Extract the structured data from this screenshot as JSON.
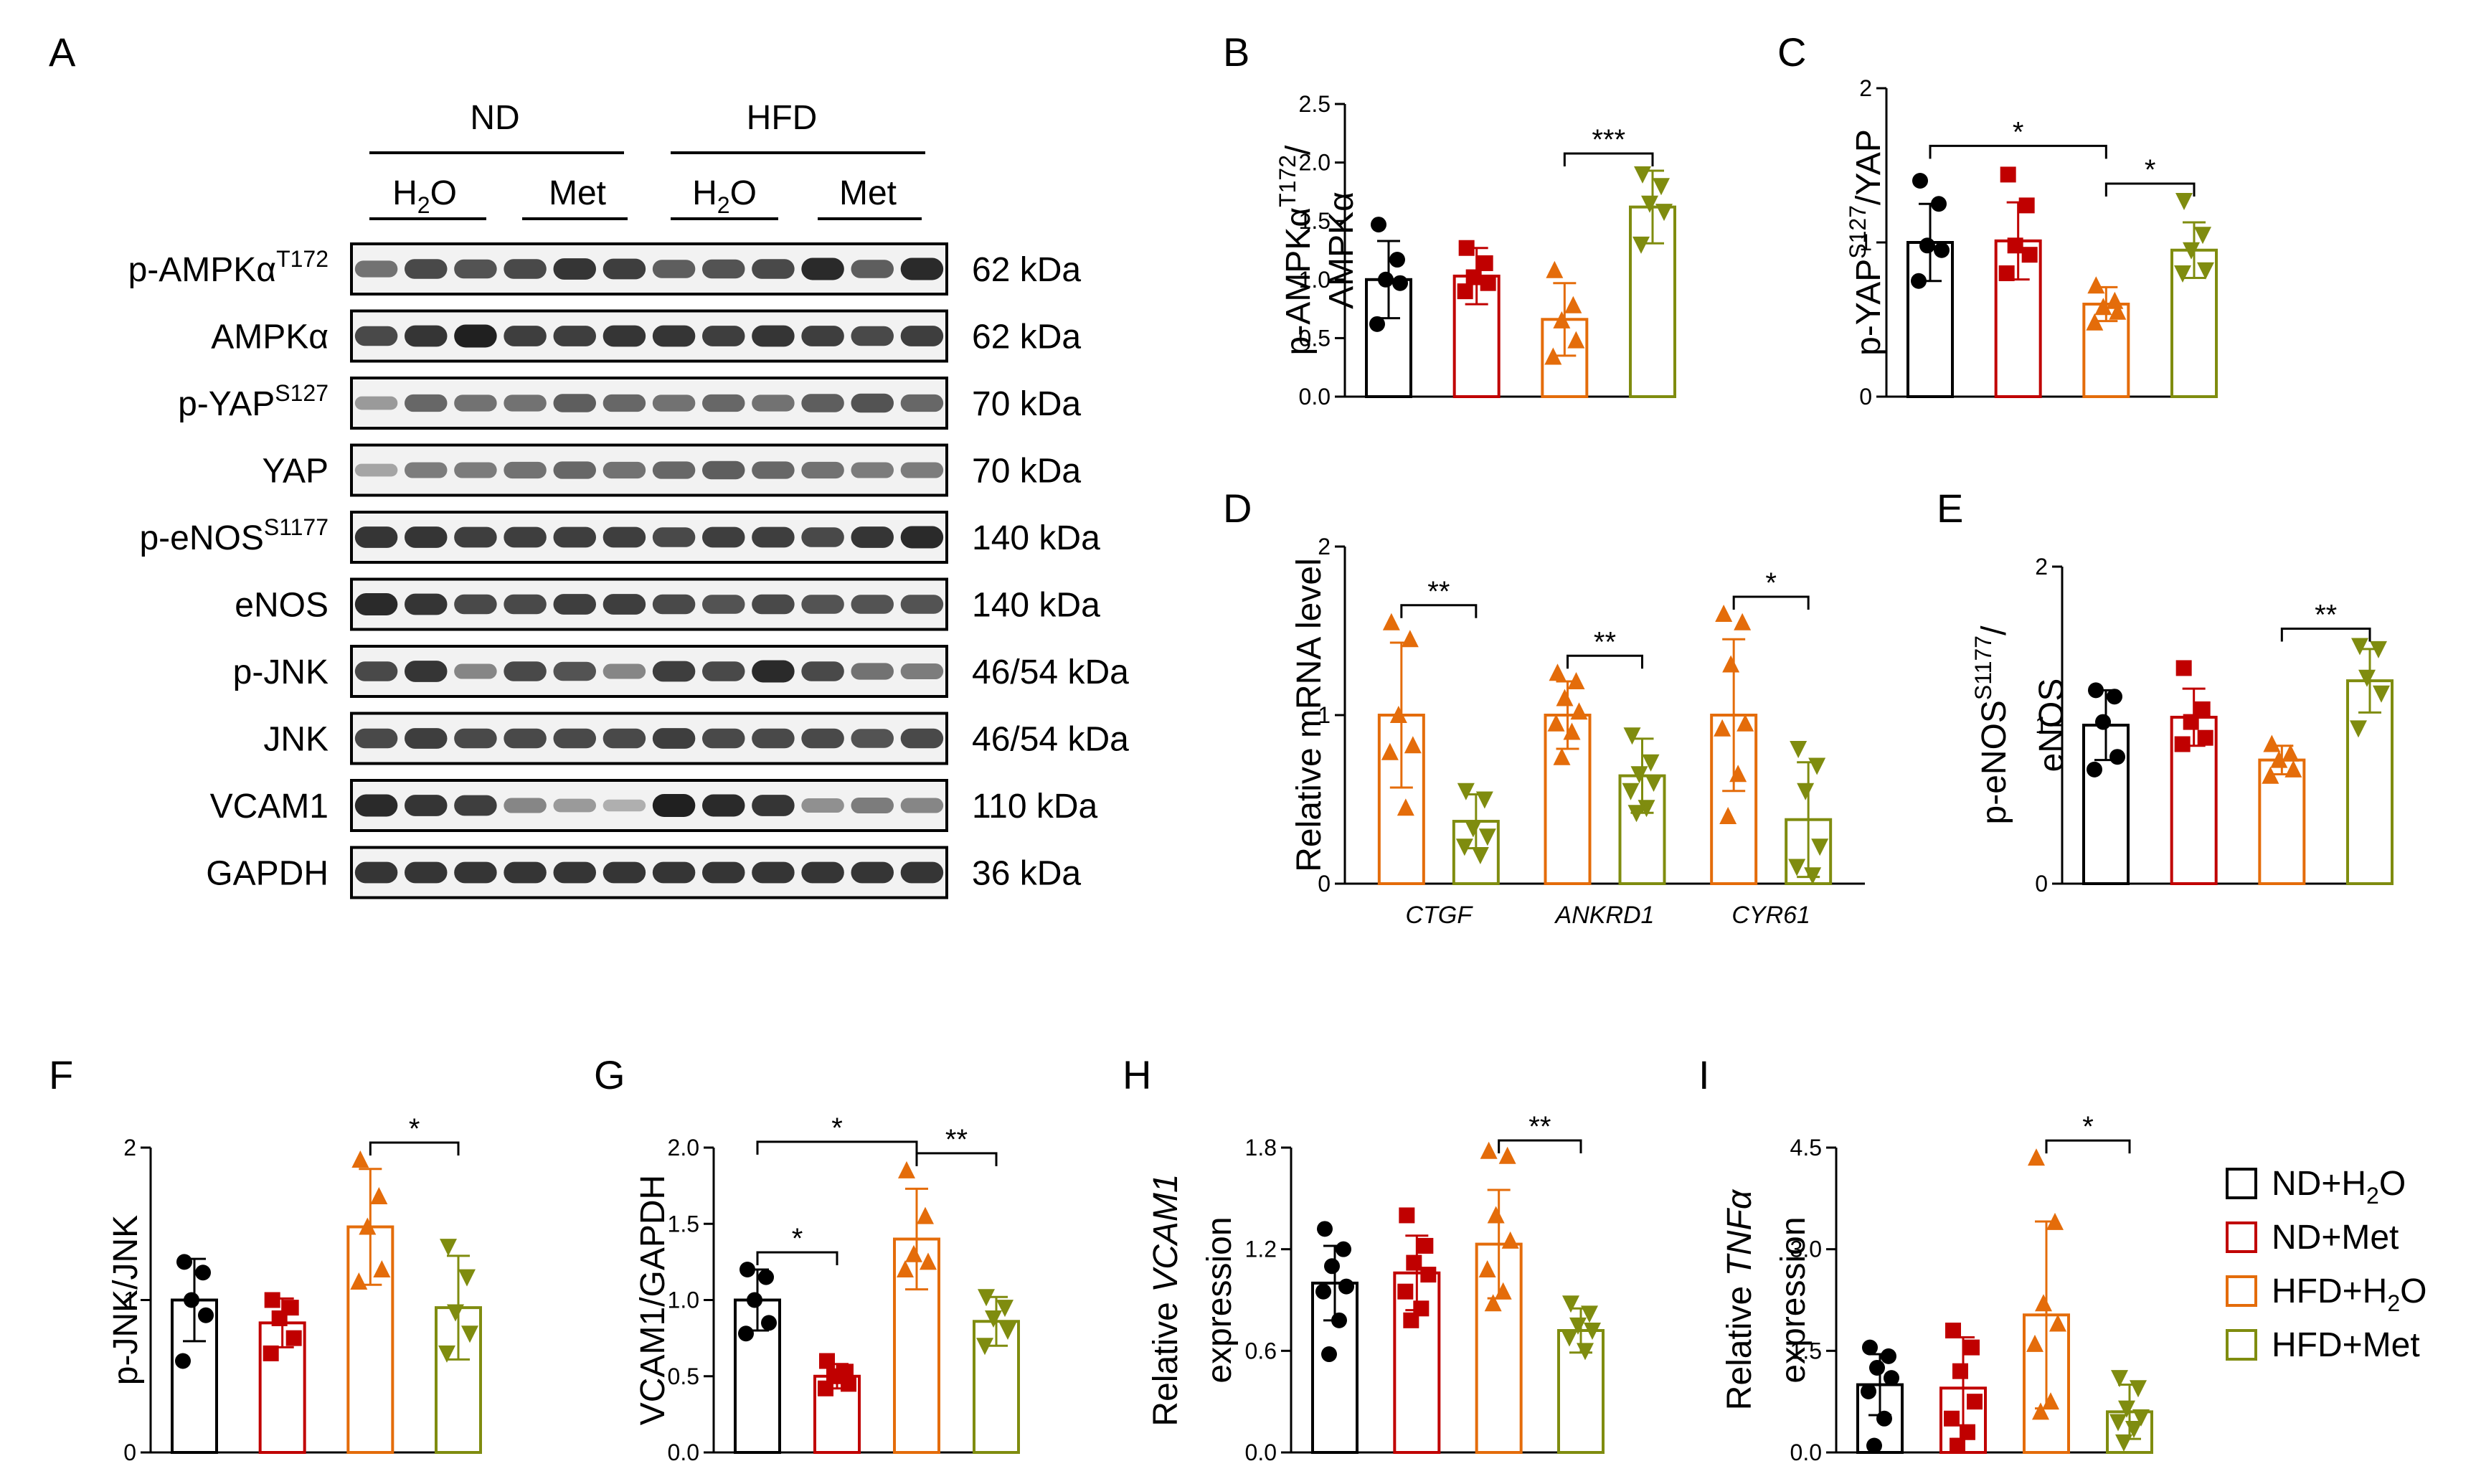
{
  "colors": {
    "ND_H2O": "#000000",
    "ND_Met": "#c00000",
    "HFD_H2O": "#e46c0a",
    "HFD_Met": "#7f8c0f"
  },
  "blot": {
    "panel_label": "A",
    "groups": [
      "ND",
      "HFD"
    ],
    "treatments": [
      {
        "main": "H",
        "sub": "2",
        "end": "O"
      },
      {
        "main": "Met",
        "sub": "",
        "end": ""
      },
      {
        "main": "H",
        "sub": "2",
        "end": "O"
      },
      {
        "main": "Met",
        "sub": "",
        "end": ""
      }
    ],
    "rows": [
      {
        "base": "p-AMPKα",
        "sup": "T172",
        "size": "62 kDa",
        "bands": [
          0.6,
          0.8,
          0.75,
          0.8,
          0.9,
          0.85,
          0.7,
          0.75,
          0.8,
          0.95,
          0.7,
          0.95
        ]
      },
      {
        "base": "AMPKα",
        "sup": "",
        "size": "62 kDa",
        "bands": [
          0.8,
          0.9,
          1.0,
          0.85,
          0.85,
          0.9,
          0.9,
          0.85,
          0.9,
          0.85,
          0.8,
          0.85
        ]
      },
      {
        "base": "p-YAP",
        "sup": "S127",
        "size": "70 kDa",
        "bands": [
          0.4,
          0.65,
          0.6,
          0.6,
          0.7,
          0.65,
          0.6,
          0.65,
          0.6,
          0.7,
          0.75,
          0.65
        ]
      },
      {
        "base": "YAP",
        "sup": "",
        "size": "70 kDa",
        "bands": [
          0.35,
          0.55,
          0.55,
          0.6,
          0.65,
          0.6,
          0.65,
          0.7,
          0.65,
          0.6,
          0.55,
          0.55
        ]
      },
      {
        "base": "p-eNOS",
        "sup": "S1177",
        "size": "140 kDa",
        "bands": [
          0.9,
          0.9,
          0.85,
          0.85,
          0.85,
          0.85,
          0.8,
          0.85,
          0.85,
          0.8,
          0.9,
          0.95
        ]
      },
      {
        "base": "eNOS",
        "sup": "",
        "size": "140 kDa",
        "bands": [
          0.95,
          0.9,
          0.8,
          0.8,
          0.85,
          0.85,
          0.8,
          0.75,
          0.8,
          0.75,
          0.75,
          0.75
        ]
      },
      {
        "base": "p-JNK",
        "sup": "",
        "size": "46/54 kDa",
        "bands": [
          0.8,
          0.9,
          0.5,
          0.8,
          0.75,
          0.5,
          0.85,
          0.8,
          0.95,
          0.8,
          0.6,
          0.55
        ]
      },
      {
        "base": "JNK",
        "sup": "",
        "size": "46/54 kDa",
        "bands": [
          0.8,
          0.85,
          0.8,
          0.8,
          0.8,
          0.8,
          0.85,
          0.8,
          0.8,
          0.8,
          0.75,
          0.8
        ]
      },
      {
        "base": "VCAM1",
        "sup": "",
        "size": "110 kDa",
        "bands": [
          0.95,
          0.9,
          0.85,
          0.5,
          0.4,
          0.3,
          1.0,
          0.95,
          0.9,
          0.45,
          0.55,
          0.5
        ]
      },
      {
        "base": "GAPDH",
        "sup": "",
        "size": "36 kDa",
        "bands": [
          0.9,
          0.9,
          0.9,
          0.9,
          0.9,
          0.9,
          0.9,
          0.9,
          0.9,
          0.9,
          0.9,
          0.9
        ]
      }
    ]
  },
  "legend": [
    {
      "main": "ND+H",
      "sub": "2",
      "end": "O",
      "color_key": "ND_H2O"
    },
    {
      "main": "ND+Met",
      "sub": "",
      "end": "",
      "color_key": "ND_Met"
    },
    {
      "main": "HFD+H",
      "sub": "2",
      "end": "O",
      "color_key": "HFD_H2O"
    },
    {
      "main": "HFD+Met",
      "sub": "",
      "end": "",
      "color_key": "HFD_Met"
    }
  ],
  "chart_data": [
    {
      "panel": "B",
      "type": "bar",
      "ylabel_lines": [
        {
          "base": "p-AMPKα",
          "sup": "T172",
          "tail": "/",
          "italic": false
        },
        {
          "base": "AMPKα",
          "sup": "",
          "tail": "",
          "italic": false
        }
      ],
      "ylim": [
        0,
        2.5
      ],
      "ticks": [
        0,
        0.5,
        1.0,
        1.5,
        2.0,
        2.5
      ],
      "tick_labels": [
        "0.0",
        "0.5",
        "1.0",
        "1.5",
        "2.0",
        "2.5"
      ],
      "bars": [
        {
          "color_key": "ND_H2O",
          "marker": "circle",
          "mean": 1.0,
          "sd": 0.33,
          "points": [
            1.47,
            1.17,
            1.0,
            0.97,
            0.62
          ]
        },
        {
          "color_key": "ND_Met",
          "marker": "square",
          "mean": 1.03,
          "sd": 0.24,
          "points": [
            1.27,
            1.14,
            1.02,
            0.97,
            0.9
          ]
        },
        {
          "color_key": "HFD_H2O",
          "marker": "triangle",
          "mean": 0.66,
          "sd": 0.31,
          "points": [
            1.08,
            0.78,
            0.65,
            0.48,
            0.34
          ]
        },
        {
          "color_key": "HFD_Met",
          "marker": "triangle-down",
          "mean": 1.62,
          "sd": 0.31,
          "points": [
            1.9,
            1.8,
            1.65,
            1.58,
            1.3
          ]
        }
      ],
      "significance": [
        {
          "from": 2,
          "to": 3,
          "label": "***"
        }
      ]
    },
    {
      "panel": "C",
      "type": "bar",
      "ylabel_lines": [
        {
          "base": "p-YAP",
          "sup": "S127",
          "tail": "/YAP",
          "italic": false
        }
      ],
      "ylim": [
        0,
        2
      ],
      "ticks": [
        0,
        1,
        2
      ],
      "tick_labels": [
        "0",
        "1",
        "2"
      ],
      "bars": [
        {
          "color_key": "ND_H2O",
          "marker": "circle",
          "mean": 1.0,
          "sd": 0.25,
          "points": [
            1.4,
            1.25,
            0.98,
            0.95,
            0.75
          ]
        },
        {
          "color_key": "ND_Met",
          "marker": "square",
          "mean": 1.01,
          "sd": 0.25,
          "points": [
            1.44,
            1.24,
            0.98,
            0.92,
            0.8
          ]
        },
        {
          "color_key": "HFD_H2O",
          "marker": "triangle",
          "mean": 0.6,
          "sd": 0.11,
          "points": [
            0.72,
            0.62,
            0.58,
            0.55,
            0.48
          ]
        },
        {
          "color_key": "HFD_Met",
          "marker": "triangle-down",
          "mean": 0.95,
          "sd": 0.18,
          "points": [
            1.27,
            1.05,
            0.95,
            0.82,
            0.8
          ]
        }
      ],
      "significance": [
        {
          "from": 0,
          "to": 2,
          "label": "*"
        },
        {
          "from": 2,
          "to": 3,
          "label": "*"
        }
      ]
    },
    {
      "panel": "D",
      "type": "bar",
      "ylabel_lines": [
        {
          "base": "Relative mRNA level",
          "sup": "",
          "tail": "",
          "italic": false
        }
      ],
      "ylim": [
        0,
        2
      ],
      "ticks": [
        0,
        1,
        2
      ],
      "tick_labels": [
        "0",
        "1",
        "2"
      ],
      "categories": [
        "CTGF",
        "ANKRD1",
        "CYR61"
      ],
      "bars": [
        {
          "color_key": "HFD_H2O",
          "marker": "triangle",
          "mean": 1.0,
          "sd": 0.43,
          "points": [
            1.55,
            1.45,
            1.0,
            0.82,
            0.78,
            0.45
          ]
        },
        {
          "color_key": "HFD_Met",
          "marker": "triangle-down",
          "mean": 0.37,
          "sd": 0.16,
          "points": [
            0.55,
            0.5,
            0.33,
            0.28,
            0.22,
            0.17
          ]
        },
        {
          "color_key": "HFD_H2O",
          "marker": "triangle",
          "mean": 1.0,
          "sd": 0.2,
          "points": [
            1.25,
            1.2,
            1.1,
            1.02,
            0.95,
            0.9,
            0.75
          ]
        },
        {
          "color_key": "HFD_Met",
          "marker": "triangle-down",
          "mean": 0.64,
          "sd": 0.22,
          "points": [
            0.88,
            0.72,
            0.65,
            0.6,
            0.55,
            0.45,
            0.42
          ]
        },
        {
          "color_key": "HFD_H2O",
          "marker": "triangle",
          "mean": 1.0,
          "sd": 0.45,
          "points": [
            1.6,
            1.55,
            1.3,
            0.95,
            0.92,
            0.65,
            0.4
          ]
        },
        {
          "color_key": "HFD_Met",
          "marker": "triangle-down",
          "mean": 0.38,
          "sd": 0.34,
          "points": [
            0.8,
            0.7,
            0.55,
            0.22,
            0.1,
            0.05
          ]
        }
      ],
      "significance": [
        {
          "from": 0,
          "to": 1,
          "label": "**"
        },
        {
          "from": 2,
          "to": 3,
          "label": "**"
        },
        {
          "from": 4,
          "to": 5,
          "label": "*"
        }
      ]
    },
    {
      "panel": "E",
      "type": "bar",
      "ylabel_lines": [
        {
          "base": "p-eNOS",
          "sup": "S1177",
          "tail": "/",
          "italic": false
        },
        {
          "base": "eNOS",
          "sup": "",
          "tail": "",
          "italic": false
        }
      ],
      "ylim": [
        0,
        2
      ],
      "ticks": [
        0,
        1,
        2
      ],
      "tick_labels": [
        "0",
        "1",
        "2"
      ],
      "bars": [
        {
          "color_key": "ND_H2O",
          "marker": "circle",
          "mean": 1.0,
          "sd": 0.22,
          "points": [
            1.22,
            1.18,
            1.02,
            0.8,
            0.72
          ]
        },
        {
          "color_key": "ND_Met",
          "marker": "square",
          "mean": 1.05,
          "sd": 0.18,
          "points": [
            1.36,
            1.1,
            1.02,
            0.92,
            0.88
          ]
        },
        {
          "color_key": "HFD_H2O",
          "marker": "triangle",
          "mean": 0.78,
          "sd": 0.09,
          "points": [
            0.88,
            0.82,
            0.78,
            0.72,
            0.68
          ]
        },
        {
          "color_key": "HFD_Met",
          "marker": "triangle-down",
          "mean": 1.28,
          "sd": 0.2,
          "points": [
            1.5,
            1.48,
            1.3,
            1.2,
            0.98
          ]
        }
      ],
      "significance": [
        {
          "from": 2,
          "to": 3,
          "label": "**"
        }
      ]
    },
    {
      "panel": "F",
      "type": "bar",
      "ylabel_lines": [
        {
          "base": "p-JNK/JNK",
          "sup": "",
          "tail": "",
          "italic": false
        }
      ],
      "ylim": [
        0,
        2
      ],
      "ticks": [
        0,
        1,
        2
      ],
      "tick_labels": [
        "0",
        "1",
        "2"
      ],
      "bars": [
        {
          "color_key": "ND_H2O",
          "marker": "circle",
          "mean": 1.0,
          "sd": 0.27,
          "points": [
            1.25,
            1.18,
            1.0,
            0.9,
            0.6
          ]
        },
        {
          "color_key": "ND_Met",
          "marker": "square",
          "mean": 0.85,
          "sd": 0.16,
          "points": [
            1.0,
            0.95,
            0.88,
            0.75,
            0.65
          ]
        },
        {
          "color_key": "HFD_H2O",
          "marker": "triangle",
          "mean": 1.48,
          "sd": 0.38,
          "points": [
            1.92,
            1.68,
            1.48,
            1.2,
            1.12
          ]
        },
        {
          "color_key": "HFD_Met",
          "marker": "triangle-down",
          "mean": 0.95,
          "sd": 0.34,
          "points": [
            1.35,
            1.15,
            0.92,
            0.78,
            0.65
          ]
        }
      ],
      "significance": [
        {
          "from": 2,
          "to": 3,
          "label": "*"
        }
      ]
    },
    {
      "panel": "G",
      "type": "bar",
      "ylabel_lines": [
        {
          "base": "VCAM1/GAPDH",
          "sup": "",
          "tail": "",
          "italic": false
        }
      ],
      "ylim": [
        0,
        2.0
      ],
      "ticks": [
        0,
        0.5,
        1.0,
        1.5,
        2.0
      ],
      "tick_labels": [
        "0.0",
        "0.5",
        "1.0",
        "1.5",
        "2.0"
      ],
      "bars": [
        {
          "color_key": "ND_H2O",
          "marker": "circle",
          "mean": 1.0,
          "sd": 0.2,
          "points": [
            1.2,
            1.15,
            1.0,
            0.85,
            0.78
          ]
        },
        {
          "color_key": "ND_Met",
          "marker": "square",
          "mean": 0.5,
          "sd": 0.08,
          "points": [
            0.6,
            0.53,
            0.5,
            0.45,
            0.42
          ]
        },
        {
          "color_key": "HFD_H2O",
          "marker": "triangle",
          "mean": 1.4,
          "sd": 0.33,
          "points": [
            1.85,
            1.55,
            1.3,
            1.25,
            1.2
          ]
        },
        {
          "color_key": "HFD_Met",
          "marker": "triangle-down",
          "mean": 0.86,
          "sd": 0.16,
          "points": [
            1.02,
            0.95,
            0.88,
            0.8,
            0.7
          ]
        }
      ],
      "significance": [
        {
          "from": 0,
          "to": 1,
          "label": "*"
        },
        {
          "from": 0,
          "to": 2,
          "label": "*"
        },
        {
          "from": 2,
          "to": 3,
          "label": "**"
        }
      ]
    },
    {
      "panel": "H",
      "type": "bar",
      "ylabel_lines": [
        {
          "base": "Relative ",
          "sup": "",
          "tail": "VCAM1",
          "italic": true
        },
        {
          "base": "expression",
          "sup": "",
          "tail": "",
          "italic": false
        }
      ],
      "ylim": [
        0,
        1.8
      ],
      "ticks": [
        0,
        0.6,
        1.2,
        1.8
      ],
      "tick_labels": [
        "0.0",
        "0.6",
        "1.2",
        "1.8"
      ],
      "bars": [
        {
          "color_key": "ND_H2O",
          "marker": "circle",
          "mean": 1.0,
          "sd": 0.22,
          "points": [
            1.32,
            1.2,
            1.1,
            0.98,
            0.95,
            0.78,
            0.58
          ]
        },
        {
          "color_key": "ND_Met",
          "marker": "square",
          "mean": 1.06,
          "sd": 0.22,
          "points": [
            1.4,
            1.22,
            1.12,
            1.05,
            0.95,
            0.85,
            0.78
          ]
        },
        {
          "color_key": "HFD_H2O",
          "marker": "triangle",
          "mean": 1.23,
          "sd": 0.32,
          "points": [
            1.78,
            1.75,
            1.4,
            1.25,
            1.08,
            0.95,
            0.88
          ]
        },
        {
          "color_key": "HFD_Met",
          "marker": "triangle-down",
          "mean": 0.72,
          "sd": 0.13,
          "points": [
            0.88,
            0.82,
            0.75,
            0.72,
            0.68,
            0.6
          ]
        }
      ],
      "significance": [
        {
          "from": 2,
          "to": 3,
          "label": "**"
        }
      ]
    },
    {
      "panel": "I",
      "type": "bar",
      "ylabel_lines": [
        {
          "base": "Relative ",
          "sup": "",
          "tail": "TNFα",
          "italic": true
        },
        {
          "base": "expression",
          "sup": "",
          "tail": "",
          "italic": false
        }
      ],
      "ylim": [
        0,
        4.5
      ],
      "ticks": [
        0,
        1.5,
        3.0,
        4.5
      ],
      "tick_labels": [
        "0.0",
        "1.5",
        "3.0",
        "4.5"
      ],
      "bars": [
        {
          "color_key": "ND_H2O",
          "marker": "circle",
          "mean": 1.0,
          "sd": 0.45,
          "points": [
            1.55,
            1.42,
            1.25,
            1.1,
            0.9,
            0.5,
            0.1
          ]
        },
        {
          "color_key": "ND_Met",
          "marker": "square",
          "mean": 0.95,
          "sd": 0.75,
          "points": [
            1.8,
            1.55,
            1.2,
            0.75,
            0.5,
            0.3,
            0.1
          ]
        },
        {
          "color_key": "HFD_H2O",
          "marker": "triangle",
          "mean": 2.03,
          "sd": 1.38,
          "points": [
            4.35,
            3.4,
            2.2,
            1.9,
            1.6,
            0.75,
            0.6
          ]
        },
        {
          "color_key": "HFD_Met",
          "marker": "triangle-down",
          "mean": 0.6,
          "sd": 0.4,
          "points": [
            1.1,
            0.95,
            0.65,
            0.52,
            0.45,
            0.35,
            0.15
          ]
        }
      ],
      "significance": [
        {
          "from": 2,
          "to": 3,
          "label": "*"
        }
      ]
    }
  ]
}
